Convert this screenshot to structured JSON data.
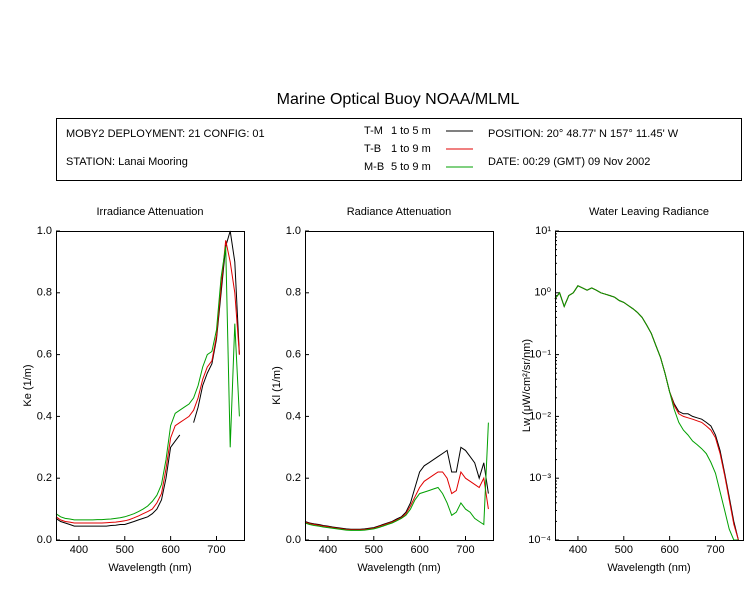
{
  "page_title": "Marine Optical Buoy NOAA/MLML",
  "header": {
    "deployment": "MOBY2 DEPLOYMENT: 21 CONFIG: 01",
    "station": "STATION: Lanai Mooring",
    "position": "POSITION: 20° 48.77' N   157° 11.45' W",
    "date": "DATE: 00:29 (GMT) 09 Nov 2002",
    "legend_depths": [
      "1 to 5  m",
      "1 to 9  m",
      "5 to 9  m"
    ]
  },
  "chart_data": [
    {
      "type": "line",
      "title": "Irradiance Attenuation",
      "xlabel": "Wavelength (nm)",
      "ylabel": "Ke  (1/m)",
      "x": [
        350,
        360,
        370,
        380,
        390,
        400,
        410,
        420,
        430,
        440,
        450,
        460,
        470,
        480,
        490,
        500,
        510,
        520,
        530,
        540,
        550,
        560,
        570,
        580,
        590,
        600,
        610,
        620,
        630,
        640,
        650,
        660,
        670,
        680,
        690,
        700,
        710,
        720,
        730,
        740,
        750
      ],
      "xlim": [
        350,
        760
      ],
      "xticks": [
        400,
        500,
        600,
        700
      ],
      "ylim": [
        0,
        1
      ],
      "yticks": [
        {
          "value": 0,
          "label": "0.0"
        },
        0.2,
        0.4,
        0.6,
        0.8,
        {
          "value": 1,
          "label": "1.0"
        }
      ],
      "log": false,
      "series": [
        {
          "name": "T-M",
          "color": "#000000",
          "values": [
            0.07,
            0.06,
            0.055,
            0.05,
            0.045,
            0.045,
            0.045,
            0.045,
            0.045,
            0.045,
            0.045,
            0.045,
            0.047,
            0.048,
            0.05,
            0.05,
            0.055,
            0.06,
            0.065,
            0.07,
            0.075,
            0.085,
            0.1,
            0.13,
            0.2,
            0.3,
            0.32,
            0.34,
            null,
            null,
            0.38,
            0.43,
            0.5,
            0.54,
            0.57,
            0.65,
            0.8,
            0.95,
            1.0,
            0.9,
            0.6
          ]
        },
        {
          "name": "T-B",
          "color": "#e00000",
          "values": [
            0.075,
            0.065,
            0.06,
            0.058,
            0.055,
            0.055,
            0.055,
            0.055,
            0.055,
            0.055,
            0.055,
            0.056,
            0.057,
            0.058,
            0.06,
            0.062,
            0.066,
            0.072,
            0.078,
            0.085,
            0.092,
            0.1,
            0.12,
            0.15,
            0.23,
            0.33,
            0.37,
            0.38,
            0.39,
            0.4,
            0.42,
            0.46,
            0.52,
            0.56,
            0.58,
            0.66,
            0.82,
            0.97,
            0.9,
            0.8,
            0.6
          ]
        },
        {
          "name": "M-B",
          "color": "#00a000",
          "values": [
            0.085,
            0.075,
            0.07,
            0.068,
            0.065,
            0.065,
            0.065,
            0.065,
            0.065,
            0.066,
            0.066,
            0.067,
            0.068,
            0.07,
            0.072,
            0.075,
            0.08,
            0.085,
            0.092,
            0.1,
            0.11,
            0.125,
            0.145,
            0.18,
            0.26,
            0.37,
            0.41,
            0.42,
            0.43,
            0.44,
            0.46,
            0.5,
            0.56,
            0.6,
            0.61,
            0.68,
            0.85,
            0.95,
            0.3,
            0.7,
            0.4
          ]
        }
      ]
    },
    {
      "type": "line",
      "title": "Radiance Attenuation",
      "xlabel": "Wavelength (nm)",
      "ylabel": "Kl  (1/m)",
      "x": [
        350,
        360,
        370,
        380,
        390,
        400,
        410,
        420,
        430,
        440,
        450,
        460,
        470,
        480,
        490,
        500,
        510,
        520,
        530,
        540,
        550,
        560,
        570,
        580,
        590,
        600,
        610,
        620,
        630,
        640,
        650,
        660,
        670,
        680,
        690,
        700,
        710,
        720,
        730,
        740,
        750
      ],
      "xlim": [
        350,
        760
      ],
      "xticks": [
        400,
        500,
        600,
        700
      ],
      "ylim": [
        0,
        1
      ],
      "yticks": [
        {
          "value": 0,
          "label": "0.0"
        },
        0.2,
        0.4,
        0.6,
        0.8,
        {
          "value": 1,
          "label": "1.0"
        }
      ],
      "log": false,
      "series": [
        {
          "name": "T-M",
          "color": "#000000",
          "values": [
            0.06,
            0.055,
            0.052,
            0.05,
            0.047,
            0.045,
            0.042,
            0.04,
            0.038,
            0.036,
            0.035,
            0.035,
            0.035,
            0.036,
            0.038,
            0.04,
            0.045,
            0.05,
            0.055,
            0.06,
            0.068,
            0.075,
            0.09,
            0.12,
            0.17,
            0.22,
            0.24,
            0.25,
            0.26,
            0.27,
            0.28,
            0.29,
            0.22,
            0.22,
            0.3,
            0.29,
            0.27,
            0.25,
            0.2,
            0.25,
            0.15
          ]
        },
        {
          "name": "T-B",
          "color": "#e00000",
          "values": [
            0.058,
            0.053,
            0.05,
            0.048,
            0.045,
            0.043,
            0.04,
            0.038,
            0.036,
            0.034,
            0.033,
            0.033,
            0.033,
            0.034,
            0.036,
            0.038,
            0.043,
            0.048,
            0.053,
            0.058,
            0.065,
            0.072,
            0.085,
            0.11,
            0.14,
            0.17,
            0.19,
            0.2,
            0.21,
            0.22,
            0.22,
            0.2,
            0.15,
            0.16,
            0.22,
            0.2,
            0.19,
            0.18,
            0.17,
            0.2,
            0.1
          ]
        },
        {
          "name": "M-B",
          "color": "#00a000",
          "values": [
            0.055,
            0.05,
            0.047,
            0.045,
            0.042,
            0.04,
            0.038,
            0.036,
            0.034,
            0.032,
            0.031,
            0.031,
            0.031,
            0.032,
            0.034,
            0.036,
            0.04,
            0.045,
            0.05,
            0.055,
            0.062,
            0.07,
            0.08,
            0.1,
            0.13,
            0.15,
            0.155,
            0.16,
            0.165,
            0.17,
            0.15,
            0.12,
            0.08,
            0.09,
            0.12,
            0.1,
            0.09,
            0.07,
            0.06,
            0.05,
            0.38
          ]
        }
      ]
    },
    {
      "type": "line",
      "title": "Water Leaving Radiance",
      "xlabel": "Wavelength (nm)",
      "ylabel": "Lw  (μW/cm²/sr/nm)",
      "x": [
        350,
        360,
        370,
        380,
        390,
        400,
        410,
        420,
        430,
        440,
        450,
        460,
        470,
        480,
        490,
        500,
        510,
        520,
        530,
        540,
        550,
        560,
        570,
        580,
        590,
        600,
        610,
        620,
        630,
        640,
        650,
        660,
        670,
        680,
        690,
        700,
        710,
        720,
        730,
        740,
        750
      ],
      "xlim": [
        350,
        760
      ],
      "xticks": [
        400,
        500,
        600,
        700
      ],
      "ylim": [
        0.0001,
        10
      ],
      "yticks": [
        {
          "value": 10,
          "label": "10¹"
        },
        {
          "value": 1,
          "label": "10⁰"
        },
        {
          "value": 0.1,
          "label": "10⁻¹"
        },
        {
          "value": 0.01,
          "label": "10⁻²"
        },
        {
          "value": 0.001,
          "label": "10⁻³"
        },
        {
          "value": 0.0001,
          "label": "10⁻⁴"
        }
      ],
      "log": true,
      "series": [
        {
          "name": "T-M",
          "color": "#000000",
          "values": [
            0.8,
            1.0,
            0.6,
            0.9,
            1.0,
            1.3,
            1.2,
            1.1,
            1.2,
            1.1,
            1.0,
            0.95,
            0.9,
            0.85,
            0.75,
            0.7,
            0.62,
            0.55,
            0.48,
            0.4,
            0.3,
            0.22,
            0.14,
            0.09,
            0.05,
            0.025,
            0.016,
            0.012,
            0.011,
            0.011,
            0.01,
            0.0095,
            0.009,
            0.008,
            0.007,
            0.005,
            0.0028,
            0.0012,
            0.0005,
            0.0002,
            0.0001
          ]
        },
        {
          "name": "T-B",
          "color": "#e00000",
          "values": [
            0.8,
            1.0,
            0.6,
            0.9,
            1.0,
            1.3,
            1.2,
            1.1,
            1.2,
            1.1,
            1.0,
            0.95,
            0.9,
            0.85,
            0.75,
            0.7,
            0.62,
            0.55,
            0.48,
            0.4,
            0.3,
            0.22,
            0.14,
            0.09,
            0.05,
            0.025,
            0.015,
            0.011,
            0.01,
            0.0095,
            0.009,
            0.0085,
            0.008,
            0.007,
            0.006,
            0.0045,
            0.0025,
            0.0011,
            0.00045,
            0.00018,
            0.0001
          ]
        },
        {
          "name": "M-B",
          "color": "#00a000",
          "values": [
            0.8,
            1.0,
            0.6,
            0.9,
            1.0,
            1.3,
            1.2,
            1.1,
            1.2,
            1.1,
            1.0,
            0.95,
            0.9,
            0.85,
            0.75,
            0.7,
            0.62,
            0.55,
            0.48,
            0.4,
            0.3,
            0.22,
            0.14,
            0.09,
            0.05,
            0.025,
            0.013,
            0.008,
            0.006,
            0.005,
            0.004,
            0.0035,
            0.003,
            0.0025,
            0.0018,
            0.0012,
            0.0006,
            0.0003,
            0.00015,
            0.0001,
            0.0001
          ]
        }
      ]
    }
  ]
}
